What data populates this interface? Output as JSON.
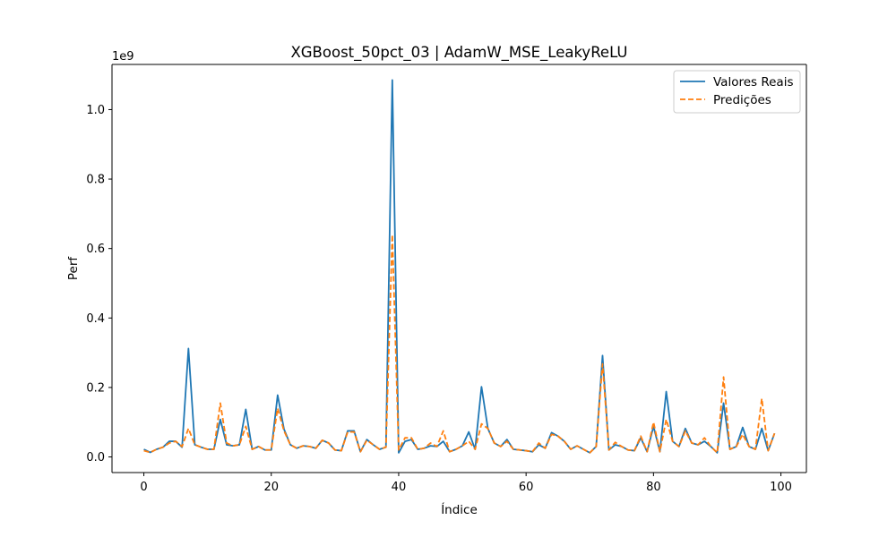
{
  "chart_data": {
    "type": "line",
    "title": "XGBoost_50pct_03 | AdamW_MSE_LeakyReLU",
    "xlabel": "Índice",
    "ylabel": "Perf",
    "y_offset_label": "1e9",
    "xlim": [
      -5,
      104
    ],
    "ylim": [
      -0.045,
      1.13
    ],
    "x_ticks": [
      0,
      20,
      40,
      60,
      80,
      100
    ],
    "x_tick_labels": [
      "0",
      "20",
      "40",
      "60",
      "80",
      "100"
    ],
    "y_ticks": [
      0.0,
      0.2,
      0.4,
      0.6,
      0.8,
      1.0
    ],
    "y_tick_labels": [
      "0.0",
      "0.2",
      "0.4",
      "0.6",
      "0.8",
      "1.0"
    ],
    "grid": false,
    "legend_position": "top-right",
    "series": [
      {
        "name": "Valores Reais",
        "color": "#1f77b4",
        "dash": "solid",
        "values": [
          0.022,
          0.013,
          0.022,
          0.028,
          0.045,
          0.045,
          0.028,
          0.312,
          0.035,
          0.028,
          0.022,
          0.022,
          0.108,
          0.035,
          0.032,
          0.035,
          0.137,
          0.022,
          0.03,
          0.02,
          0.02,
          0.178,
          0.08,
          0.035,
          0.025,
          0.032,
          0.03,
          0.025,
          0.048,
          0.04,
          0.02,
          0.018,
          0.075,
          0.075,
          0.015,
          0.05,
          0.035,
          0.022,
          0.028,
          1.085,
          0.012,
          0.045,
          0.05,
          0.022,
          0.025,
          0.032,
          0.03,
          0.045,
          0.015,
          0.022,
          0.032,
          0.072,
          0.022,
          0.202,
          0.082,
          0.04,
          0.03,
          0.05,
          0.022,
          0.02,
          0.018,
          0.015,
          0.035,
          0.025,
          0.07,
          0.06,
          0.045,
          0.022,
          0.032,
          0.022,
          0.012,
          0.03,
          0.292,
          0.02,
          0.035,
          0.03,
          0.02,
          0.018,
          0.055,
          0.015,
          0.088,
          0.015,
          0.188,
          0.045,
          0.03,
          0.082,
          0.04,
          0.035,
          0.045,
          0.03,
          0.012,
          0.155,
          0.022,
          0.03,
          0.085,
          0.03,
          0.022,
          0.082,
          0.018,
          0.068
        ]
      },
      {
        "name": "Predições",
        "color": "#ff7f0e",
        "dash": "dashed",
        "values": [
          0.018,
          0.013,
          0.022,
          0.028,
          0.04,
          0.045,
          0.03,
          0.082,
          0.035,
          0.028,
          0.022,
          0.022,
          0.155,
          0.04,
          0.032,
          0.035,
          0.088,
          0.022,
          0.03,
          0.02,
          0.02,
          0.14,
          0.075,
          0.035,
          0.025,
          0.032,
          0.03,
          0.025,
          0.048,
          0.04,
          0.02,
          0.018,
          0.072,
          0.072,
          0.015,
          0.048,
          0.035,
          0.022,
          0.028,
          0.64,
          0.02,
          0.055,
          0.055,
          0.022,
          0.025,
          0.04,
          0.03,
          0.075,
          0.015,
          0.022,
          0.032,
          0.045,
          0.022,
          0.095,
          0.082,
          0.04,
          0.03,
          0.045,
          0.022,
          0.02,
          0.018,
          0.015,
          0.04,
          0.025,
          0.065,
          0.06,
          0.045,
          0.022,
          0.032,
          0.022,
          0.012,
          0.03,
          0.268,
          0.02,
          0.042,
          0.03,
          0.02,
          0.018,
          0.06,
          0.015,
          0.1,
          0.015,
          0.108,
          0.045,
          0.03,
          0.075,
          0.04,
          0.035,
          0.055,
          0.03,
          0.012,
          0.23,
          0.022,
          0.03,
          0.065,
          0.03,
          0.022,
          0.168,
          0.018,
          0.068
        ]
      }
    ]
  }
}
